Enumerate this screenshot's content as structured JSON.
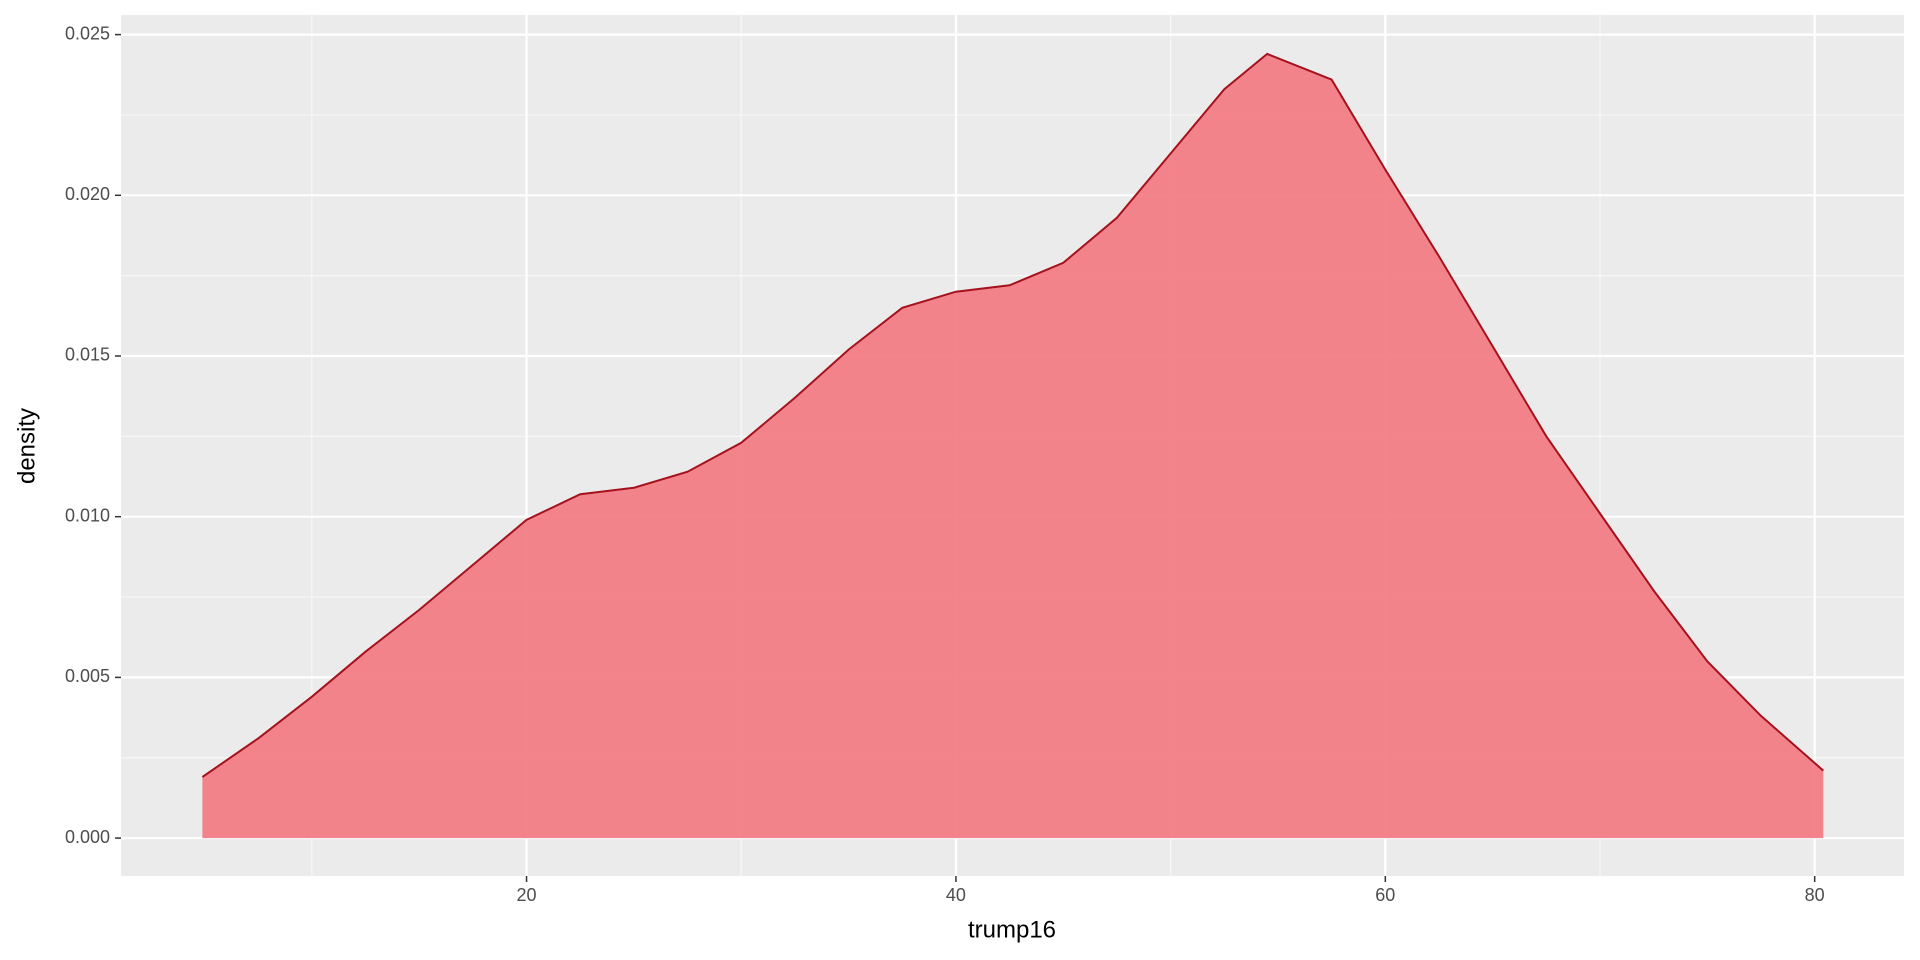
{
  "chart_data": {
    "type": "area",
    "x_label": "trump16",
    "y_label": "density",
    "x": [
      4.9,
      7.5,
      10,
      12.5,
      15,
      17.5,
      20,
      22.5,
      25,
      27.5,
      30,
      32.5,
      35,
      37.5,
      40,
      42.5,
      45,
      47.5,
      50,
      52.5,
      54.5,
      57.5,
      60,
      62.5,
      65,
      67.5,
      70,
      72.5,
      75,
      77.5,
      80.4
    ],
    "values": [
      0.0019,
      0.0031,
      0.0044,
      0.0058,
      0.0071,
      0.0085,
      0.0099,
      0.0107,
      0.0109,
      0.0114,
      0.0123,
      0.0137,
      0.0152,
      0.0165,
      0.017,
      0.0172,
      0.0179,
      0.0193,
      0.0213,
      0.0233,
      0.0244,
      0.0236,
      0.0208,
      0.0181,
      0.0153,
      0.0125,
      0.0101,
      0.0077,
      0.0055,
      0.0038,
      0.0021
    ],
    "color": "#f27d85",
    "line_color": "#a5121e",
    "xlim": [
      1.11,
      84.16
    ],
    "xticks": [
      20,
      40,
      60,
      80
    ],
    "ylim": [
      -0.00118,
      0.02561
    ],
    "yticks": [
      {
        "value": 0,
        "label": "0.000"
      },
      {
        "value": 0.005,
        "label": "0.005"
      },
      {
        "value": 0.01,
        "label": "0.010"
      },
      {
        "value": 0.015,
        "label": "0.015"
      },
      {
        "value": 0.02,
        "label": "0.020"
      },
      {
        "value": 0.025,
        "label": "0.025"
      }
    ],
    "grid": true
  }
}
